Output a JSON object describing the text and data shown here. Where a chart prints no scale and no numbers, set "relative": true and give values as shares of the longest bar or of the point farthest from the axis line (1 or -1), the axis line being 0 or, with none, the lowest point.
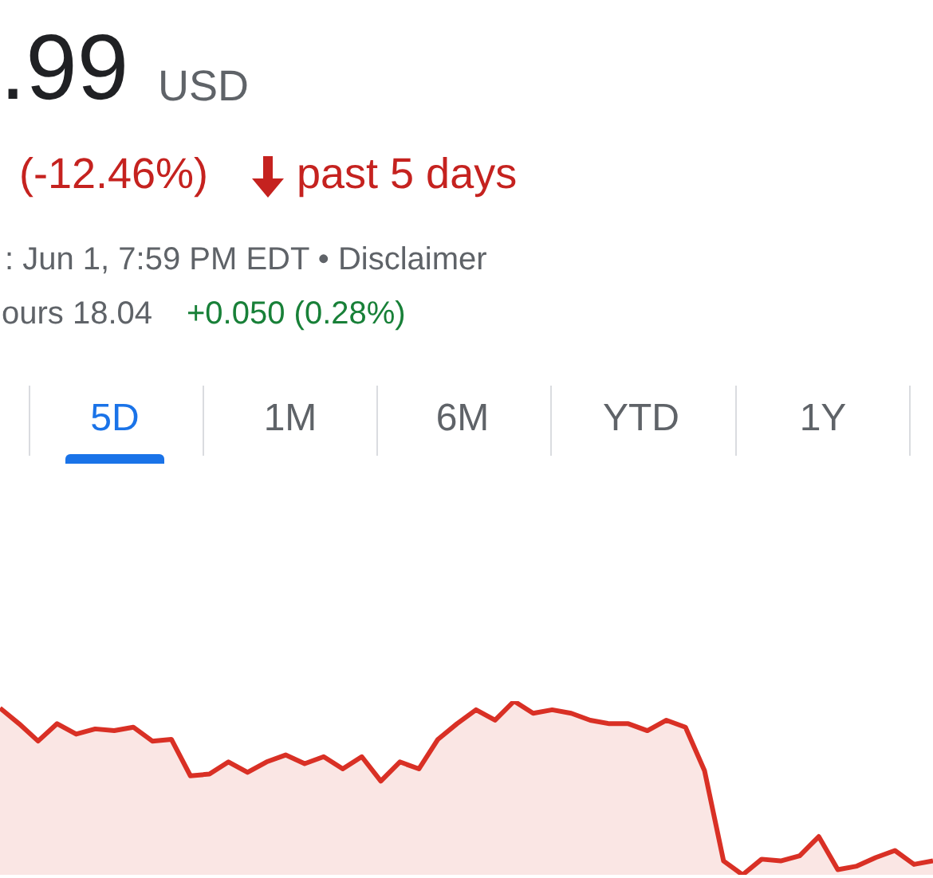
{
  "chart_data": {
    "type": "area",
    "relative": true,
    "color": "#d93025",
    "annotations": [
      ".99",
      "USD",
      "(-12.46%)",
      "past 5 days",
      ": Jun 1, 7:59 PM EDT • Disclaimer",
      "ours 18.04",
      "+0.050 (0.28%)",
      "5D",
      "1M",
      "6M",
      "YTD",
      "1Y"
    ],
    "categories": [
      null,
      null,
      null,
      null,
      null,
      null,
      null,
      null,
      null,
      null,
      null,
      null,
      null,
      null,
      null,
      null,
      null,
      null,
      null,
      null,
      null,
      null,
      null,
      null,
      null,
      null,
      null,
      null,
      null,
      null,
      null,
      null,
      null,
      null,
      null,
      null,
      null,
      null,
      null,
      null,
      null,
      null,
      null,
      null,
      null,
      null,
      null,
      null,
      null,
      null
    ],
    "values": [
      0.96,
      0.87,
      0.77,
      0.87,
      0.81,
      0.84,
      0.83,
      0.85,
      0.77,
      0.78,
      0.57,
      0.58,
      0.65,
      0.59,
      0.65,
      0.69,
      0.64,
      0.68,
      0.61,
      0.68,
      0.54,
      0.65,
      0.61,
      0.78,
      0.87,
      0.95,
      0.89,
      1.0,
      0.93,
      0.95,
      0.93,
      0.89,
      0.87,
      0.87,
      0.83,
      0.89,
      0.85,
      0.6,
      0.08,
      0,
      0.09,
      0.08,
      0.11,
      0.22,
      0.03,
      0.05,
      0.1,
      0.14,
      0.06,
      0.08
    ]
  }
}
